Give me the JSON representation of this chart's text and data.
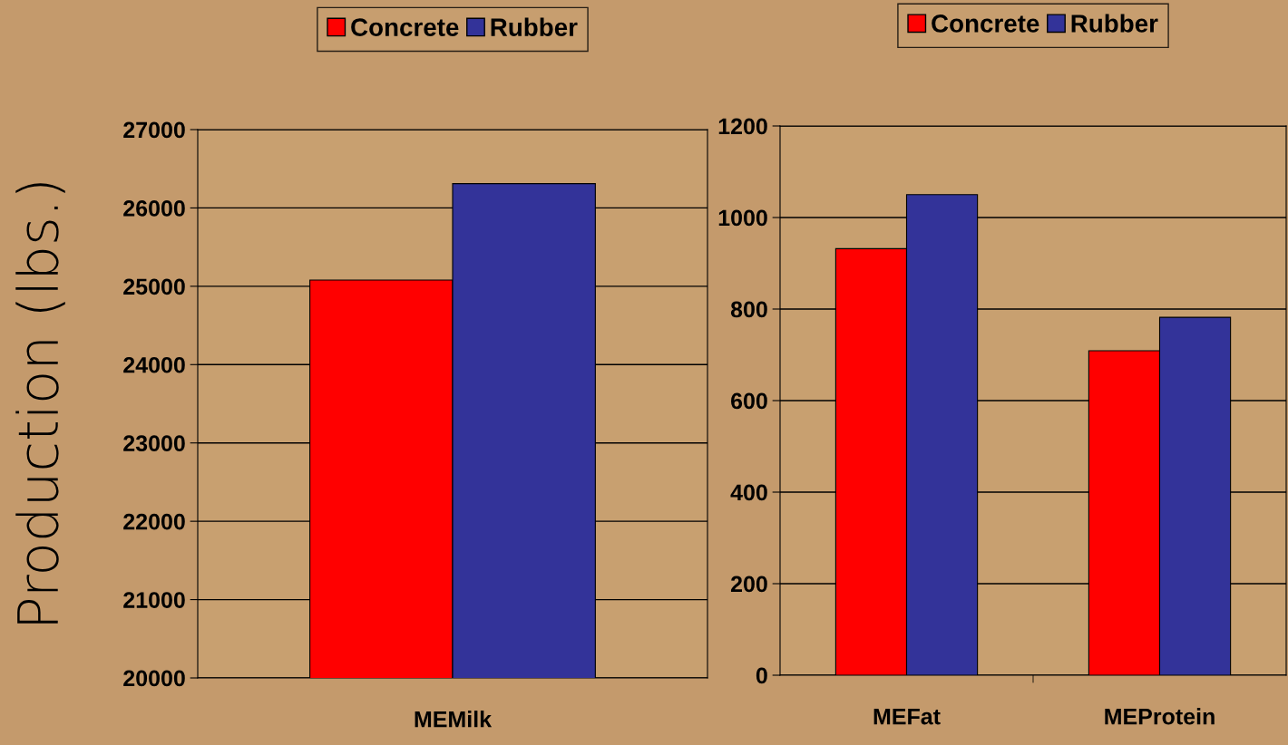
{
  "chart_data": [
    {
      "type": "bar",
      "ylabel": "Production (lbs.)",
      "categories": [
        "MEMilk"
      ],
      "series": [
        {
          "name": "Concrete",
          "color": "#ff0000",
          "values": [
            25080
          ]
        },
        {
          "name": "Rubber",
          "color": "#333399",
          "values": [
            26310
          ]
        }
      ],
      "ylim": [
        20000,
        27000
      ],
      "yticks": [
        20000,
        21000,
        22000,
        23000,
        24000,
        25000,
        26000,
        27000
      ],
      "grid": "y",
      "legend": "top"
    },
    {
      "type": "bar",
      "categories": [
        "MEFat",
        "MEProtein"
      ],
      "series": [
        {
          "name": "Concrete",
          "color": "#ff0000",
          "values": [
            932,
            709
          ]
        },
        {
          "name": "Rubber",
          "color": "#333399",
          "values": [
            1050,
            782
          ]
        }
      ],
      "ylim": [
        0,
        1200
      ],
      "yticks": [
        0,
        200,
        400,
        600,
        800,
        1000,
        1200
      ],
      "grid": "y",
      "legend": "top"
    }
  ]
}
